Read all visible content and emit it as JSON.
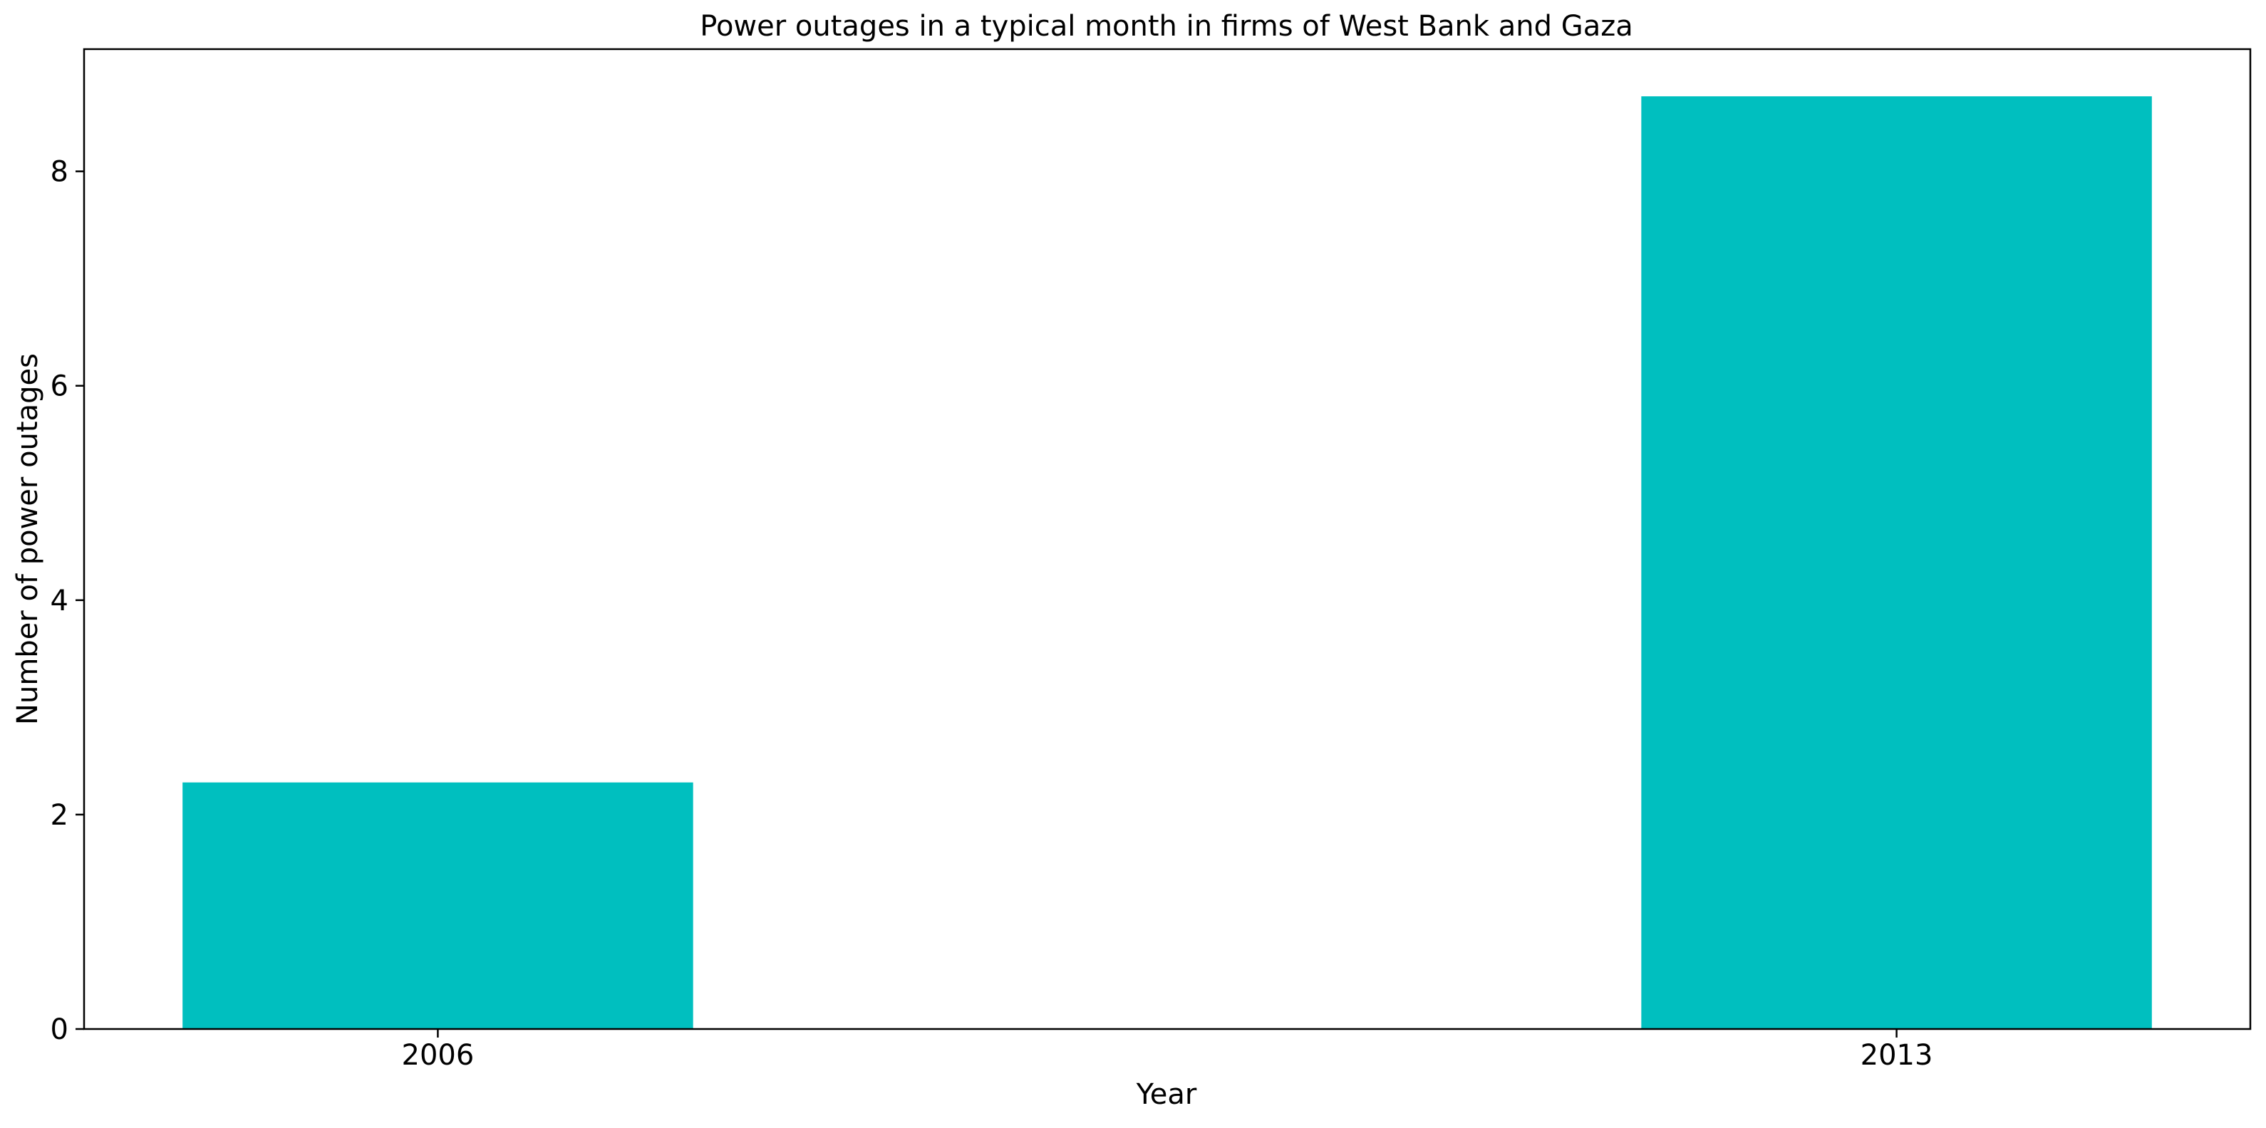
{
  "chart_data": {
    "type": "bar",
    "title": "Power outages in a typical month in firms of West Bank and Gaza",
    "xlabel": "Year",
    "ylabel": "Number of power outages",
    "categories": [
      "2006",
      "2013"
    ],
    "values": [
      2.3,
      8.7
    ],
    "ylim": [
      0,
      9.14
    ],
    "yticks": [
      0,
      2,
      4,
      6,
      8
    ],
    "grid": false,
    "legend": "none",
    "bar_color": "#00BFBF"
  }
}
